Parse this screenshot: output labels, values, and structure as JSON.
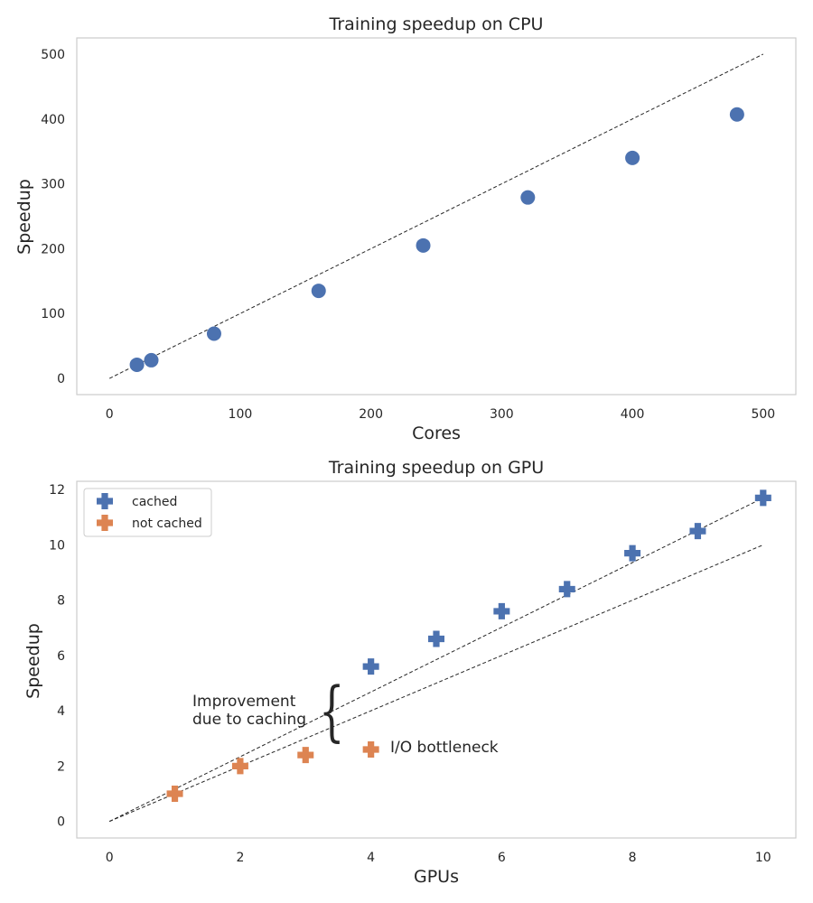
{
  "colors": {
    "blue": "#4c72b0",
    "orange": "#dd8452"
  },
  "chart_data": [
    {
      "id": "cpu",
      "type": "scatter",
      "title": "Training speedup on CPU",
      "xlabel": "Cores",
      "ylabel": "Speedup",
      "xlim": [
        -25,
        525
      ],
      "ylim": [
        -25,
        525
      ],
      "xticks": [
        0,
        100,
        200,
        300,
        400,
        500
      ],
      "yticks": [
        0,
        100,
        200,
        300,
        400,
        500
      ],
      "grid": false,
      "ideal_line": {
        "x": [
          0,
          500
        ],
        "y": [
          0,
          500
        ]
      },
      "series": [
        {
          "name": "speedup",
          "color": "blue",
          "marker": "circle",
          "x": [
            21,
            32,
            80,
            160,
            240,
            320,
            400,
            480
          ],
          "y": [
            21,
            28,
            69,
            135,
            205,
            279,
            340,
            407
          ]
        }
      ]
    },
    {
      "id": "gpu",
      "type": "scatter",
      "title": "Training speedup on GPU",
      "xlabel": "GPUs",
      "ylabel": "Speedup",
      "xlim": [
        -0.5,
        10.5
      ],
      "ylim": [
        -0.6,
        12.3
      ],
      "xticks": [
        0,
        2,
        4,
        6,
        8,
        10
      ],
      "yticks": [
        0,
        2,
        4,
        6,
        8,
        10,
        12
      ],
      "grid": false,
      "legend_position": "top-left",
      "ideal_lines": [
        {
          "x": [
            0,
            10
          ],
          "y": [
            0,
            11.7
          ]
        },
        {
          "x": [
            0,
            10
          ],
          "y": [
            0,
            10
          ]
        }
      ],
      "series": [
        {
          "name": "cached",
          "color": "blue",
          "marker": "plus",
          "x": [
            4,
            5,
            6,
            7,
            8,
            9,
            10
          ],
          "y": [
            5.6,
            6.6,
            7.6,
            8.4,
            9.7,
            10.5,
            11.7
          ]
        },
        {
          "name": "not cached",
          "color": "orange",
          "marker": "plus",
          "x": [
            1,
            2,
            3,
            4
          ],
          "y": [
            1.0,
            2.0,
            2.4,
            2.6
          ]
        }
      ],
      "annotations": {
        "improvement_line1": "Improvement",
        "improvement_line2": "due to caching",
        "brace": "{",
        "bottleneck": "I/O bottleneck"
      }
    }
  ]
}
